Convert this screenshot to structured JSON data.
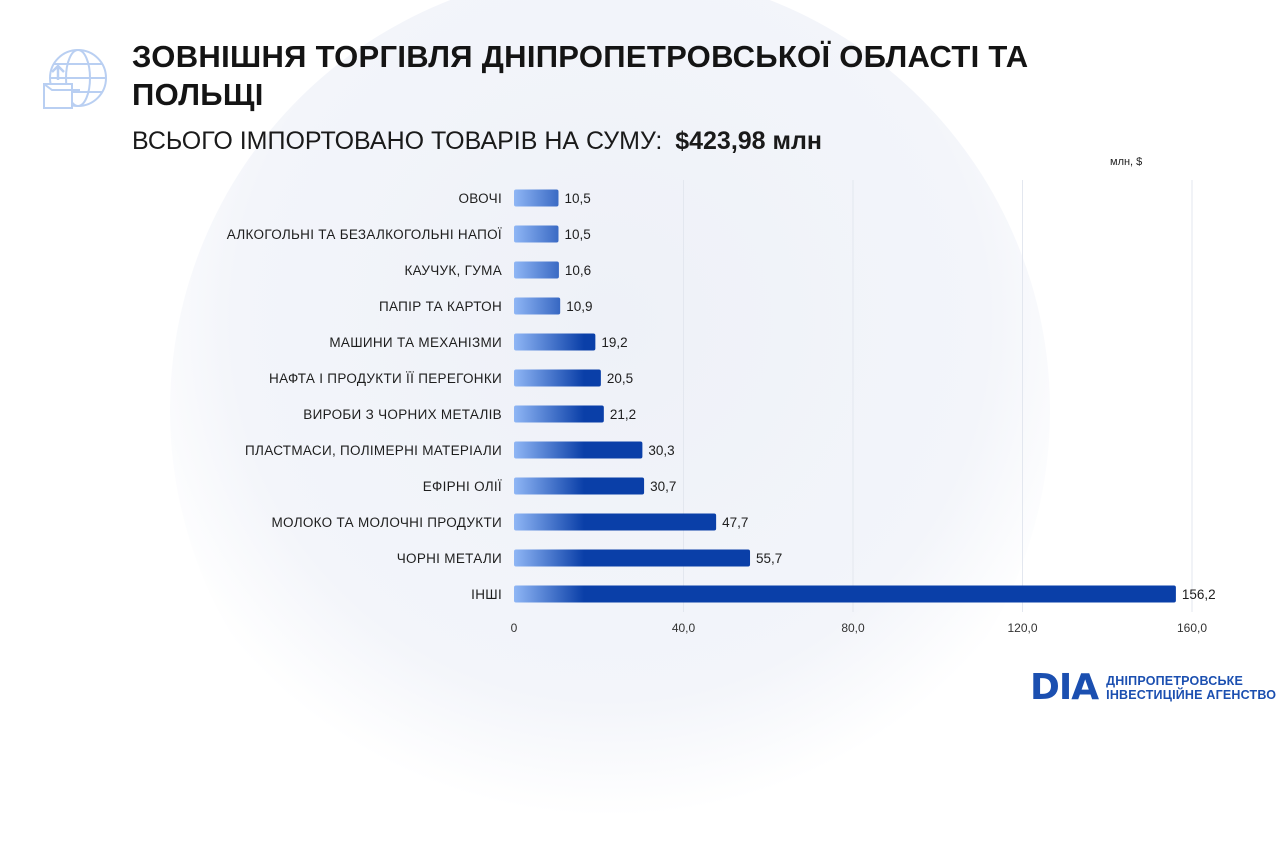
{
  "header": {
    "title": "ЗОВНІШНЯ ТОРГІВЛЯ ДНІПРОПЕТРОВСЬКОЇ ОБЛАСТІ ТА ПОЛЬЩІ",
    "subtitle_prefix": "ВСЬОГО ІМПОРТОВАНО ТОВАРІВ НА СУМУ:",
    "subtitle_amount": "$423,98 млн"
  },
  "logo": {
    "mark": "DIA",
    "line1": "ДНІПРОПЕТРОВСЬКЕ",
    "line2": "ІНВЕСТИЦІЙНЕ АГЕНСТВО",
    "icon": "globe-upload-box-icon"
  },
  "colors": {
    "bar_light": "#8fb6f5",
    "bar_dark": "#0a3fa8",
    "brand": "#1b4fb0"
  },
  "chart_data": {
    "type": "bar",
    "orientation": "horizontal",
    "unit_label": "млн, $",
    "categories": [
      "ОВОЧІ",
      "АЛКОГОЛЬНІ ТА БЕЗАЛКОГОЛЬНІ НАПОЇ",
      "КАУЧУК, ГУМА",
      "ПАПІР ТА КАРТОН",
      "МАШИНИ ТА МЕХАНІЗМИ",
      "НАФТА І ПРОДУКТИ ЇЇ ПЕРЕГОНКИ",
      "ВИРОБИ З ЧОРНИХ МЕТАЛІВ",
      "ПЛАСТМАСИ, ПОЛІМЕРНІ МАТЕРІАЛИ",
      "ЕФІРНІ ОЛІЇ",
      "МОЛОКО ТА МОЛОЧНІ ПРОДУКТИ",
      "ЧОРНІ МЕТАЛИ",
      "ІНШІ"
    ],
    "values": [
      10.5,
      10.5,
      10.6,
      10.9,
      19.2,
      20.5,
      21.2,
      30.3,
      30.7,
      47.7,
      55.7,
      156.2
    ],
    "value_labels": [
      "10,5",
      "10,5",
      "10,6",
      "10,9",
      "19,2",
      "20,5",
      "21,2",
      "30,3",
      "30,7",
      "47,7",
      "55,7",
      "156,2"
    ],
    "xlim": [
      0,
      160
    ],
    "xticks": [
      0,
      40,
      80,
      120,
      160
    ],
    "xtick_labels": [
      "0",
      "40,0",
      "80,0",
      "120,0",
      "160,0"
    ],
    "grid": true
  }
}
